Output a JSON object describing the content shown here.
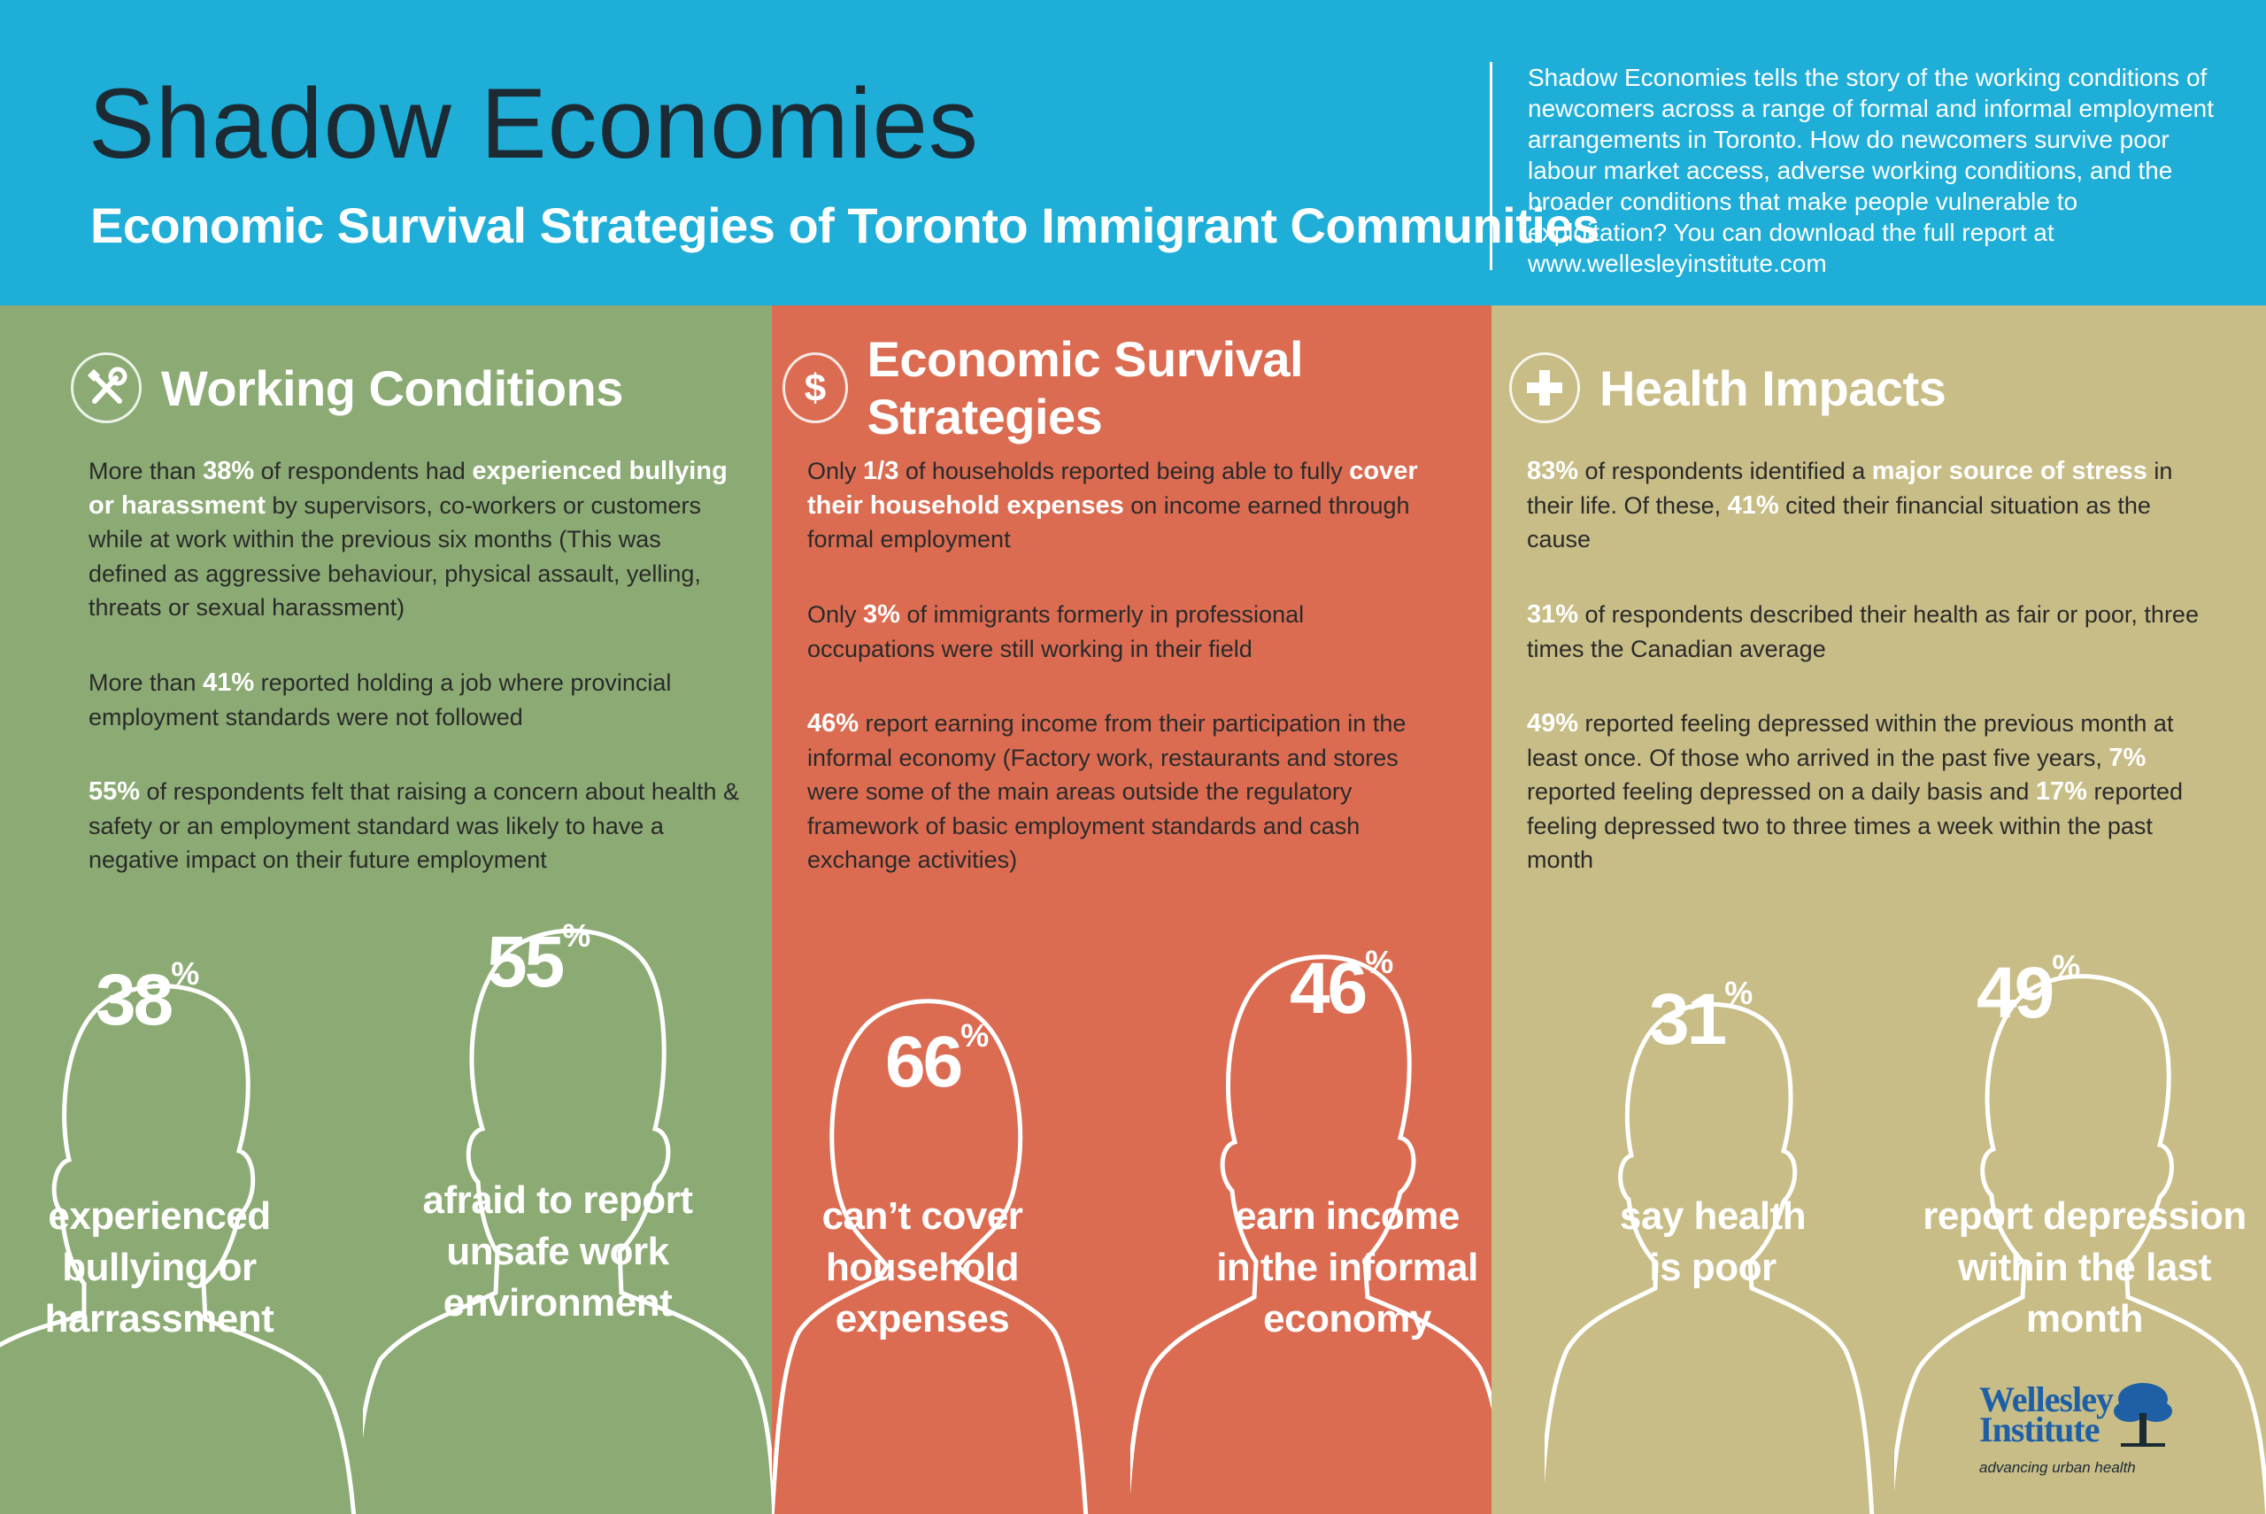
{
  "header": {
    "title": "Shadow Economies",
    "subtitle": "Economic Survival Strategies of Toronto Immigrant Communities",
    "intro": "Shadow Economies tells the story of the working conditions of newcomers across a range of formal and informal employment arrangements in Toronto. How do newcomers survive poor labour market access, adverse working conditions, and the broader conditions that make people vulnerable to exploitation? You can download the full report at",
    "url": "www.wellesleyinstitute.com"
  },
  "colors": {
    "header": "#1faed8",
    "working": "#8cab74",
    "economic": "#db6c52",
    "health": "#c8bd86"
  },
  "working": {
    "icon": "wrench-screwdriver-icon",
    "title": "Working Conditions",
    "s1": {
      "a": "More than ",
      "b": "38%",
      "c": " of respondents had ",
      "d": "experienced bullying or harassment",
      "e": " by supervisors, co-workers or customers while at work within the previous six months (This was defined as aggressive behaviour, physical assault, yelling, threats or sexual harassment)"
    },
    "s2": {
      "a": "More than ",
      "b": "41%",
      "c": " reported holding a job where provincial employment standards were not followed"
    },
    "s3": {
      "b": "55%",
      "c": " of respondents felt that raising a concern about health & safety or an employment standard was likely to have a negative impact on their future employment"
    },
    "fig1": {
      "num": "38",
      "pct": "%",
      "cap1": "experienced",
      "cap2": "bullying or",
      "cap3": "harrassment"
    },
    "fig2": {
      "num": "55",
      "pct": "%",
      "cap1": "afraid to report",
      "cap2": "unsafe work",
      "cap3": "environment"
    }
  },
  "economic": {
    "icon": "dollar-icon",
    "title": "Economic Survival Strategies",
    "s1": {
      "a": "Only ",
      "b": "1/3",
      "c": " of households reported being able to fully ",
      "d": "cover their household expenses",
      "e": " on income earned through formal employment"
    },
    "s2": {
      "a": "Only ",
      "b": "3%",
      "c": " of immigrants formerly in professional occupations were still working in their field"
    },
    "s3": {
      "b": "46%",
      "c": " report earning income from their participation in the informal economy (Factory work, restaurants and stores were some of the main areas outside the regulatory framework of basic employment standards and cash exchange activities)"
    },
    "fig1": {
      "num": "66",
      "pct": "%",
      "cap1": "can’t cover",
      "cap2": "household",
      "cap3": "expenses"
    },
    "fig2": {
      "num": "46",
      "pct": "%",
      "cap1": "earn income",
      "cap2": "in the informal",
      "cap3": "economy"
    }
  },
  "health": {
    "icon": "plus-icon",
    "title": "Health Impacts",
    "s1": {
      "b": "83%",
      "c": " of respondents identified a ",
      "d": "major source of stress",
      "e": " in their life. Of these, ",
      "f": "41%",
      "g": " cited their financial situation as the cause"
    },
    "s2": {
      "b": "31%",
      "c": " of respondents described their health as fair or poor, three times the Canadian average"
    },
    "s3": {
      "b": "49%",
      "c": " reported feeling depressed within the previous month at least once. Of those who arrived in the past five years, ",
      "d": "7%",
      "e": " reported feeling depressed on a daily basis and ",
      "f": "17%",
      "g": " reported feeling depressed two to three times a week within the past month"
    },
    "fig1": {
      "num": "31",
      "pct": "%",
      "cap1": "say health",
      "cap2": "is poor"
    },
    "fig2": {
      "num": "49",
      "pct": "%",
      "cap1": "report depression",
      "cap2": "within the last",
      "cap3": "month"
    }
  },
  "logo": {
    "name1": "Wellesley",
    "name2": "Institute",
    "tagline": "advancing urban health",
    "icon": "tree-icon"
  }
}
